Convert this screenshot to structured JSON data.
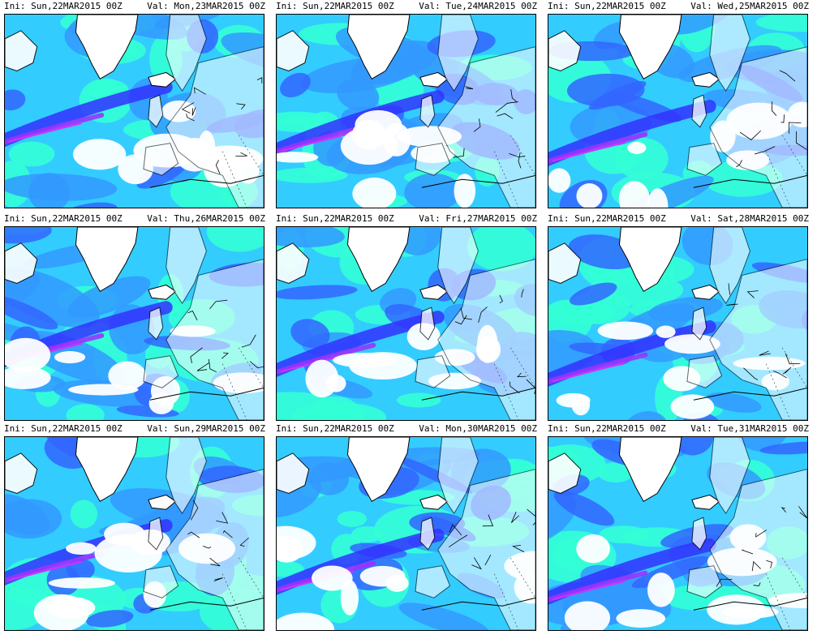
{
  "panels": [
    {
      "ini": "Ini: Sun,22MAR2015 00Z",
      "val": "Val: Mon,23MAR2015 00Z"
    },
    {
      "ini": "Ini: Sun,22MAR2015 00Z",
      "val": "Val: Tue,24MAR2015 00Z"
    },
    {
      "ini": "Ini: Sun,22MAR2015 00Z",
      "val": "Val: Wed,25MAR2015 00Z"
    },
    {
      "ini": "Ini: Sun,22MAR2015 00Z",
      "val": "Val: Thu,26MAR2015 00Z"
    },
    {
      "ini": "Ini: Sun,22MAR2015 00Z",
      "val": "Val: Fri,27MAR2015 00Z"
    },
    {
      "ini": "Ini: Sun,22MAR2015 00Z",
      "val": "Val: Sat,28MAR2015 00Z"
    },
    {
      "ini": "Ini: Sun,22MAR2015 00Z",
      "val": "Val: Sun,29MAR2015 00Z"
    },
    {
      "ini": "Ini: Sun,22MAR2015 00Z",
      "val": "Val: Mon,30MAR2015 00Z"
    },
    {
      "ini": "Ini: Sun,22MAR2015 00Z",
      "val": "Val: Tue,31MAR2015 00Z"
    }
  ],
  "palette": {
    "cyan": "#33ffd6",
    "light_blue": "#33ccff",
    "blue": "#3399ff",
    "mid_blue": "#3366ff",
    "deep_blue": "#3333ff",
    "purple": "#9933ff",
    "magenta": "#cc33ff",
    "land": "#ffffff",
    "coast": "#000000"
  }
}
